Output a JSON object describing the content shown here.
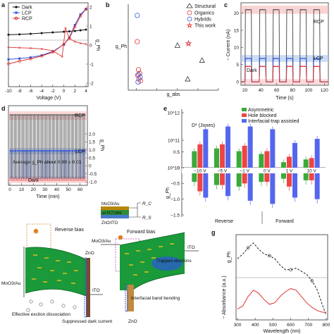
{
  "panel_labels": [
    "a",
    "b",
    "c",
    "d",
    "e",
    "f",
    "g"
  ],
  "chart_data": [
    {
      "panel": "a",
      "type": "line",
      "xlabel": "Voltage (V)",
      "ylabel_right": "g_Ph",
      "xticks": [
        "-10",
        "-8",
        "-6",
        "-4",
        "-2",
        "0",
        "2",
        "4"
      ],
      "right_ticks": [
        "2",
        "1",
        "0",
        "-1",
        "-2"
      ],
      "series": [
        {
          "name": "Dark",
          "color": "#111111",
          "x": [
            -10,
            -8,
            -6,
            -4,
            -2,
            0,
            1,
            2,
            3,
            4
          ],
          "y": [
            0.55,
            0.57,
            0.6,
            0.64,
            0.68,
            0.72,
            0.74,
            0.76,
            0.8,
            0.84
          ]
        },
        {
          "name": "LCP",
          "color": "#3355dd",
          "x": [
            -10,
            -8,
            -6,
            -4,
            -2,
            0,
            1,
            2,
            3,
            4
          ],
          "y": [
            -0.85,
            -0.8,
            -0.74,
            -0.62,
            -0.4,
            0.0,
            0.4,
            1.1,
            1.7,
            2.0
          ]
        },
        {
          "name": "RCP",
          "color": "#dd3333",
          "x": [
            -10,
            -8,
            -6,
            -4,
            -2,
            0,
            1,
            2,
            3,
            4
          ],
          "y": [
            -1.1,
            -0.95,
            -0.82,
            -0.66,
            -0.44,
            0.0,
            0.35,
            1.0,
            1.6,
            2.0
          ]
        }
      ],
      "gph": {
        "x": [
          -10,
          -8,
          -6,
          -4,
          -2,
          -0.3,
          0.3,
          1,
          2,
          3,
          4
        ],
        "y": [
          -0.12,
          -0.14,
          -0.16,
          -0.2,
          -0.3,
          -0.6,
          0.9,
          0.35,
          0.18,
          0.1,
          0.06
        ]
      }
    },
    {
      "panel": "b",
      "type": "scatter",
      "xlabel": "g_abs",
      "ylabel": "g_Ph",
      "xticks": [
        "0",
        "0.5",
        "1.0",
        "1.5",
        "2.0"
      ],
      "xlim": [
        -0.2,
        2.0
      ],
      "ylim": [
        -0.1,
        2.2
      ],
      "series": [
        {
          "name": "Structural",
          "marker": "triangle",
          "color": "#333333",
          "x": [
            1.6,
            1.0,
            1.25
          ],
          "y": [
            0.7,
            1.1,
            0.2
          ]
        },
        {
          "name": "Organics",
          "marker": "circle",
          "color": "#dd3333",
          "x": [
            0.02,
            0.05,
            0.08,
            0.03,
            0.06,
            0.1
          ],
          "y": [
            1.2,
            0.45,
            0.35,
            0.3,
            0.2,
            0.15
          ]
        },
        {
          "name": "Hybrids",
          "marker": "circle",
          "color": "#3355dd",
          "x": [
            0.02,
            0.05,
            0.09,
            0.04
          ],
          "y": [
            1.9,
            0.32,
            0.25,
            0.12
          ]
        },
        {
          "name": "This work",
          "marker": "star",
          "color": "#dd3333",
          "x": [
            1.27
          ],
          "y": [
            1.15
          ]
        }
      ]
    },
    {
      "panel": "c",
      "type": "line",
      "xlabel": "Time (s)",
      "ylabel": "− Current (nA)",
      "xticks": [
        "20",
        "40",
        "60",
        "80",
        "100",
        "120"
      ],
      "yticks": [
        "0",
        "5",
        "10",
        "15",
        "20"
      ],
      "xlim": [
        15,
        125
      ],
      "ylim": [
        -1,
        23
      ],
      "labels": [
        "RCP",
        "LCP",
        "Dark"
      ],
      "levels": {
        "RCP_on": 21.0,
        "LCP_on": 6.8,
        "Dark_on": 4.5,
        "off": 0.0
      },
      "pulses_on": [
        [
          20,
          28
        ],
        [
          38,
          46
        ],
        [
          55,
          63
        ],
        [
          72,
          80
        ],
        [
          89,
          97
        ],
        [
          106,
          114
        ]
      ]
    },
    {
      "panel": "d",
      "type": "line",
      "xlabel": "Time (min)",
      "ylabel_right": "g_Ph",
      "xticks": [
        "0",
        "10",
        "20",
        "30",
        "40",
        "50",
        "60"
      ],
      "right_ticks": [
        "2.0",
        "1.5",
        "1.0",
        "0.5",
        "0",
        "-0.5",
        "-1.0"
      ],
      "labels": [
        "RCP",
        "LCP",
        "Dark"
      ],
      "annotation": "Average g_Ph about 0.99 ± 0.01",
      "cycles": 44
    },
    {
      "panel": "e",
      "type": "bar",
      "ylabel_top": "D* (Jones)",
      "ylabel_bottom": "g_Ph",
      "categories": [
        "−10 V",
        "−5 V",
        "−1 V",
        "0 V",
        "1 V",
        "10 V"
      ],
      "top_ticks": [
        "10^12",
        "10^11",
        "10^10"
      ],
      "bottom_ticks": [
        "0.5",
        "0",
        "−0.5",
        "−1.0",
        "−1.5"
      ],
      "regions": [
        "Reverse",
        "Forward"
      ],
      "series": [
        {
          "name": "Asymmetric",
          "color": "#3aaa3a",
          "dstar_log": [
            10.6,
            10.7,
            10.6,
            10.5,
            10.2,
            10.3
          ],
          "gph": [
            -0.45,
            -0.55,
            -0.6,
            -0.45,
            -0.35,
            -0.4
          ]
        },
        {
          "name": "Hole blocked",
          "color": "#ee4444",
          "dstar_log": [
            10.85,
            10.85,
            10.8,
            10.6,
            10.4,
            10.35
          ],
          "gph": [
            -0.75,
            -0.55,
            -0.5,
            -0.45,
            -0.6,
            -0.4
          ]
        },
        {
          "name": "Interfacial-trap assisted",
          "color": "#5566ee",
          "dstar_log": [
            11.4,
            11.5,
            11.5,
            11.4,
            10.9,
            11.05
          ],
          "gph": [
            -0.95,
            -0.9,
            -1.05,
            -1.15,
            -0.95,
            -1.0
          ]
        }
      ]
    },
    {
      "panel": "g",
      "type": "line",
      "xlabel": "Wavelength (nm)",
      "ylabel": "− Absorbance (a.u.)",
      "ylabel_top": "g_Ph",
      "xticks": [
        "300",
        "400",
        "500",
        "600",
        "700",
        "800"
      ],
      "series": [
        {
          "name": "g_Ph",
          "color": "#222222",
          "style": "dashed",
          "x": [
            300,
            330,
            360,
            390,
            420,
            450,
            480,
            510,
            540,
            570,
            600,
            630,
            660,
            690,
            720,
            750,
            780,
            800
          ],
          "y": [
            0.6,
            0.75,
            0.95,
            1.1,
            0.9,
            0.75,
            0.7,
            0.6,
            0.4,
            0.25,
            0.25,
            0.3,
            0.2,
            0.1,
            -0.1,
            -0.4,
            -0.9,
            -1.2
          ]
        },
        {
          "name": "Absorbance",
          "color": "#dd3333",
          "style": "solid",
          "x": [
            300,
            330,
            360,
            390,
            420,
            450,
            480,
            510,
            540,
            570,
            600,
            630,
            660,
            690,
            720,
            750,
            780,
            800
          ],
          "y": [
            -1.0,
            -0.9,
            -0.6,
            -0.4,
            -0.5,
            -0.7,
            -0.85,
            -0.8,
            -0.6,
            -0.45,
            -0.35,
            -0.4,
            -0.6,
            -0.8,
            -0.95,
            -1.05,
            -1.1,
            -1.1
          ]
        }
      ]
    }
  ],
  "schematic": {
    "stack": [
      "MoO3/Au",
      "w/ PC71BM",
      "ZnO/ITO"
    ],
    "resistors": [
      "R_C",
      "R_S"
    ],
    "left": {
      "title": "Reverse bias",
      "labels": [
        "MoO3/Au",
        "Effective exciton dissociation",
        "Suppressed dark current",
        "ZnO",
        "ITO"
      ]
    },
    "right": {
      "title": "Forward bias",
      "labels": [
        "MoO3/Au",
        "Trapped electrons",
        "Interfacial band bending",
        "ITO",
        "ZnO"
      ]
    }
  },
  "colors": {
    "dark": "#111111",
    "lcp": "#3355dd",
    "rcp": "#dd3333",
    "green": "#22aa44",
    "band": "#1a9a3a"
  }
}
